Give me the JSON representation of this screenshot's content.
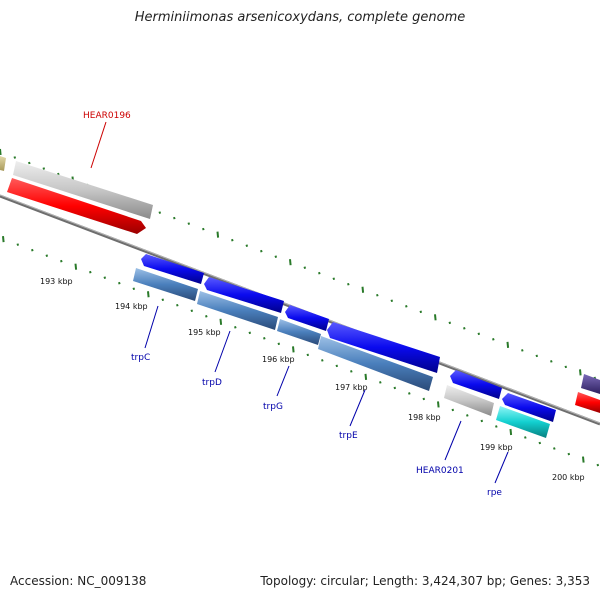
{
  "header": {
    "title": "Herminiimonas arsenicoxydans, complete genome"
  },
  "footer": {
    "accession": "Accession: NC_009138",
    "summary": "Topology: circular; Length: 3,424,307 bp; Genes: 3,353"
  },
  "scale_labels": [
    "193 kbp",
    "194 kbp",
    "195 kbp",
    "196 kbp",
    "197 kbp",
    "198 kbp",
    "199 kbp",
    "200 kbp"
  ],
  "gene_labels": {
    "HEAR0196": "HEAR0196",
    "trpC": "trpC",
    "trpD": "trpD",
    "trpG": "trpG",
    "trpE": "trpE",
    "HEAR0201": "HEAR0201",
    "rpe": "rpe"
  },
  "colors": {
    "red_label": "#cc0000",
    "blue_label": "#0000aa",
    "tick": "#2a7a2a"
  }
}
